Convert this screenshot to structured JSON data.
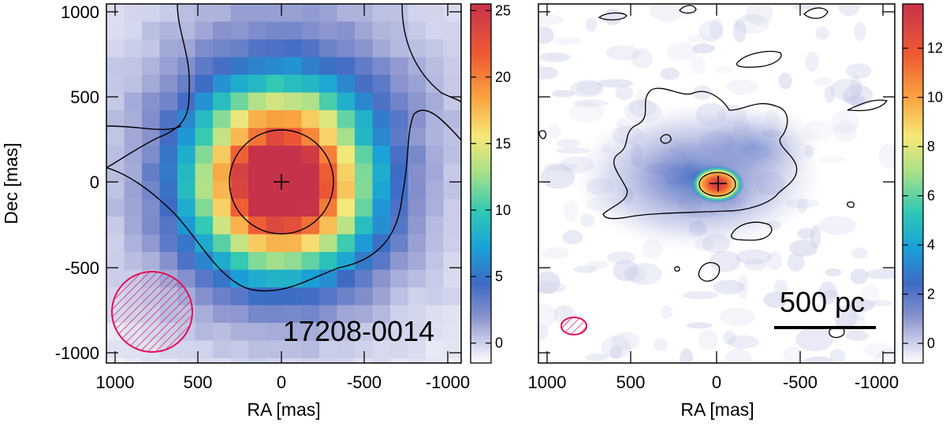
{
  "chart_data": [
    {
      "type": "heatmap",
      "panel": "left",
      "xlabel": "RA [mas]",
      "ylabel": "Dec [mas]",
      "xlim": [
        1000,
        -1000
      ],
      "ylim": [
        -1050,
        1050
      ],
      "xticks": [
        "1000",
        "500",
        "0",
        "-500",
        "-1000"
      ],
      "yticks": [
        "1000",
        "500",
        "0",
        "-500",
        "-1000"
      ],
      "colorbar": {
        "range": [
          -1.5,
          25.5
        ],
        "ticks": [
          "0",
          "5",
          "10",
          "15",
          "20",
          "25"
        ]
      },
      "source_label": "17208-0014",
      "peak": {
        "ra": 0,
        "dec": 0,
        "value": 25
      },
      "beam": {
        "ra": 760,
        "dec": -740,
        "diameter_mas": 470
      }
    },
    {
      "type": "heatmap",
      "panel": "right",
      "xlabel": "RA [mas]",
      "xlim": [
        1000,
        -1000
      ],
      "ylim": [
        -1050,
        1050
      ],
      "xticks": [
        "1000",
        "500",
        "0",
        "-500",
        "-1000"
      ],
      "colorbar": {
        "range": [
          -0.8,
          13.8
        ],
        "ticks": [
          "0",
          "2",
          "4",
          "6",
          "8",
          "10",
          "12"
        ]
      },
      "scale_bar": {
        "label": "500 pc"
      },
      "peak": {
        "ra": 0,
        "dec": 0,
        "value": 13.5
      },
      "beam": {
        "ra": 830,
        "dec": -850,
        "width_mas": 150,
        "height_mas": 110
      }
    }
  ],
  "colors": {
    "beam": "#e0105a",
    "contour": "#000000",
    "colormap": [
      "#ffffff",
      "#c9cde8",
      "#8791cc",
      "#3f6ac4",
      "#1aa0d8",
      "#2ec8b4",
      "#a8e08a",
      "#f6e878",
      "#f9a341",
      "#ee5a33",
      "#c7324b"
    ]
  }
}
